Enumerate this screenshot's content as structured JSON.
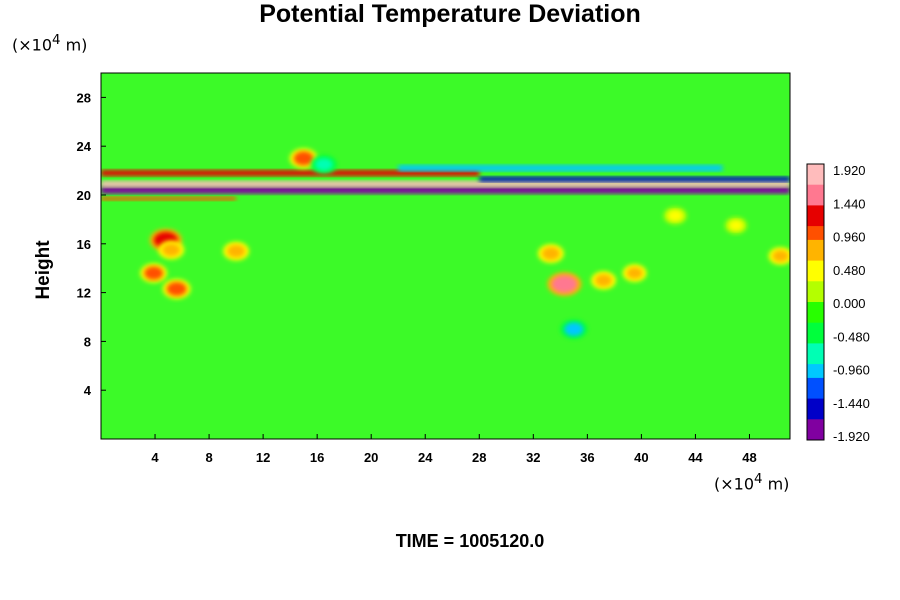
{
  "chart_data": {
    "type": "heatmap",
    "title": "Potential Temperature Deviation",
    "ylabel": "Height",
    "xunit_prefix": "(×10",
    "xunit_exp": "4",
    "xunit_suffix": " m)",
    "yunit_prefix": "(×10",
    "yunit_exp": "4",
    "yunit_suffix": " m)",
    "footer": "TIME = 1005120.0",
    "xlim": [
      0,
      51
    ],
    "ylim": [
      0,
      30
    ],
    "xticks": [
      "4",
      "8",
      "12",
      "16",
      "20",
      "24",
      "28",
      "32",
      "36",
      "40",
      "44",
      "48"
    ],
    "yticks": [
      "4",
      "8",
      "12",
      "16",
      "20",
      "24",
      "28"
    ],
    "colorbar_labels": [
      "1.920",
      "1.440",
      "0.960",
      "0.480",
      "0.000",
      "-0.480",
      "-0.960",
      "-1.440",
      "-1.920"
    ],
    "colorbar_range": [
      -2.0,
      2.0
    ],
    "colormap": [
      "#8000a0",
      "#0000c8",
      "#0050ff",
      "#00c8ff",
      "#00ffb4",
      "#00ff3c",
      "#28ff00",
      "#b4ff00",
      "#ffff00",
      "#ffb400",
      "#ff5000",
      "#e60000",
      "#ff7890",
      "#ffbcbc"
    ],
    "background_color": "#3cfa28",
    "features": [
      {
        "kind": "band",
        "x": [
          0,
          51
        ],
        "y": 20.4,
        "value": -1.9,
        "thickness": 0.6
      },
      {
        "kind": "band",
        "x": [
          0,
          51
        ],
        "y": 20.9,
        "value": 1.9,
        "thickness": 0.5
      },
      {
        "kind": "band",
        "x": [
          0,
          28
        ],
        "y": 21.8,
        "value": 1.2,
        "thickness": 0.5
      },
      {
        "kind": "band",
        "x": [
          28,
          51
        ],
        "y": 21.3,
        "value": -1.6,
        "thickness": 0.4
      },
      {
        "kind": "band",
        "x": [
          22,
          46
        ],
        "y": 22.2,
        "value": -1.0,
        "thickness": 0.5
      },
      {
        "kind": "band",
        "x": [
          0,
          10
        ],
        "y": 19.7,
        "value": 0.9,
        "thickness": 0.3
      },
      {
        "kind": "blob",
        "x": 4.8,
        "y": 16.3,
        "value": 1.4
      },
      {
        "kind": "blob",
        "x": 5.2,
        "y": 15.5,
        "value": 0.8
      },
      {
        "kind": "blob",
        "x": 10.0,
        "y": 15.4,
        "value": 0.8
      },
      {
        "kind": "blob",
        "x": 3.9,
        "y": 13.6,
        "value": 0.9
      },
      {
        "kind": "blob",
        "x": 5.6,
        "y": 12.3,
        "value": 1.0
      },
      {
        "kind": "blob",
        "x": 34.3,
        "y": 12.7,
        "value": 1.6
      },
      {
        "kind": "blob",
        "x": 33.3,
        "y": 15.2,
        "value": 0.8
      },
      {
        "kind": "blob",
        "x": 37.2,
        "y": 13.0,
        "value": 0.7
      },
      {
        "kind": "blob",
        "x": 39.5,
        "y": 13.6,
        "value": 0.6
      },
      {
        "kind": "blob",
        "x": 35.0,
        "y": 9.0,
        "value": -0.9
      },
      {
        "kind": "blob",
        "x": 15.0,
        "y": 23.0,
        "value": 1.0
      },
      {
        "kind": "blob",
        "x": 16.5,
        "y": 22.5,
        "value": -0.8
      },
      {
        "kind": "blob",
        "x": 42.5,
        "y": 18.3,
        "value": 0.5
      },
      {
        "kind": "blob",
        "x": 47.0,
        "y": 17.5,
        "value": 0.4
      },
      {
        "kind": "blob",
        "x": 50.3,
        "y": 15.0,
        "value": 0.6
      }
    ]
  }
}
